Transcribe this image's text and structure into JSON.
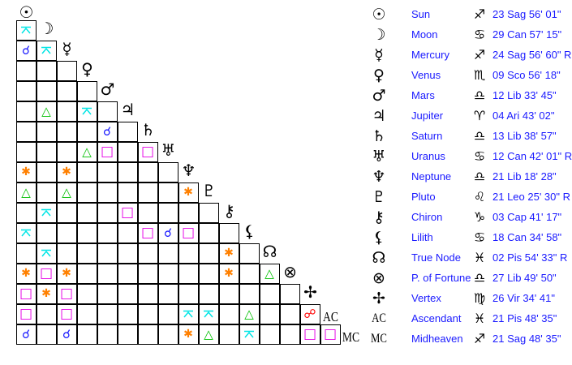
{
  "aspect_colors": {
    "conjunction": "#1a1aff",
    "sextile": "#ff8000",
    "square": "#e600e6",
    "trine": "#00c000",
    "quincunx": "#00e5e5",
    "opposition": "#ff0000"
  },
  "aspect_glyphs": {
    "conjunction": "☌",
    "sextile": "✱",
    "square": "□",
    "trine": "△",
    "quincunx": "quincunx-icon",
    "opposition": "☍"
  },
  "bodies": [
    {
      "glyph": "☉",
      "icon": "sun-icon",
      "name": "Sun",
      "sign": "♐",
      "position": "23 Sag 56' 01\""
    },
    {
      "glyph": "☽",
      "icon": "moon-icon",
      "name": "Moon",
      "sign": "♋",
      "position": "29 Can 57' 15\""
    },
    {
      "glyph": "☿",
      "icon": "mercury-icon",
      "name": "Mercury",
      "sign": "♐",
      "position": "24 Sag 56' 60\" R"
    },
    {
      "glyph": "♀",
      "icon": "venus-icon",
      "name": "Venus",
      "sign": "♏",
      "position": "09 Sco 56' 18\""
    },
    {
      "glyph": "♂",
      "icon": "mars-icon",
      "name": "Mars",
      "sign": "♎",
      "position": "12 Lib 33' 45\""
    },
    {
      "glyph": "♃",
      "icon": "jupiter-icon",
      "name": "Jupiter",
      "sign": "♈",
      "position": "04 Ari 43' 02\""
    },
    {
      "glyph": "♄",
      "icon": "saturn-icon",
      "name": "Saturn",
      "sign": "♎",
      "position": "13 Lib 38' 57\""
    },
    {
      "glyph": "♅",
      "icon": "uranus-icon",
      "name": "Uranus",
      "sign": "♋",
      "position": "12 Can 42' 01\" R"
    },
    {
      "glyph": "♆",
      "icon": "neptune-icon",
      "name": "Neptune",
      "sign": "♎",
      "position": "21 Lib 18' 28\""
    },
    {
      "glyph": "♇",
      "icon": "pluto-icon",
      "name": "Pluto",
      "sign": "♌",
      "position": "21 Leo 25' 30\" R"
    },
    {
      "glyph": "⚷",
      "icon": "chiron-icon",
      "name": "Chiron",
      "sign": "♑",
      "position": "03 Cap 41' 17\""
    },
    {
      "glyph": "⚸",
      "icon": "lilith-icon",
      "name": "Lilith",
      "sign": "♋",
      "position": "18 Can 34' 58\""
    },
    {
      "glyph": "☊",
      "icon": "true-node-icon",
      "name": "True Node",
      "sign": "♓",
      "position": "02 Pis 54' 33\" R"
    },
    {
      "glyph": "⊗",
      "icon": "part-of-fortune-icon",
      "name": "P. of Fortune",
      "sign": "♎",
      "position": "27 Lib 49' 50\""
    },
    {
      "glyph": "✢",
      "icon": "vertex-icon",
      "name": "Vertex",
      "sign": "♍",
      "position": "26 Vir 34' 41\""
    },
    {
      "glyph": "AC",
      "icon": "ascendant-label",
      "name": "Ascendant",
      "sign": "♓",
      "position": "21 Pis 48' 35\""
    },
    {
      "glyph": "MC",
      "icon": "midheaven-label",
      "name": "Midheaven",
      "sign": "♐",
      "position": "21 Sag 48' 35\""
    }
  ],
  "aspects": [
    [],
    [
      [
        "quincunx"
      ]
    ],
    [
      [
        "conjunction"
      ],
      [
        "quincunx"
      ]
    ],
    [],
    [],
    [
      [
        1,
        "trine"
      ],
      [
        3,
        "quincunx"
      ]
    ],
    [
      [
        4,
        "conjunction"
      ]
    ],
    [
      [
        3,
        "trine"
      ],
      [
        4,
        "square"
      ],
      [
        6,
        "square"
      ]
    ],
    [
      [
        0,
        "sextile"
      ],
      [
        2,
        "sextile"
      ]
    ],
    [
      [
        0,
        "trine"
      ],
      [
        2,
        "trine"
      ],
      [
        8,
        "sextile"
      ]
    ],
    [
      [
        1,
        "quincunx"
      ],
      [
        5,
        "square"
      ]
    ],
    [
      [
        0,
        "quincunx"
      ],
      [
        6,
        "square"
      ],
      [
        7,
        "conjunction"
      ],
      [
        8,
        "square"
      ]
    ],
    [
      [
        1,
        "quincunx"
      ],
      [
        10,
        "sextile"
      ]
    ],
    [
      [
        0,
        "sextile"
      ],
      [
        1,
        "square"
      ],
      [
        2,
        "sextile"
      ],
      [
        10,
        "sextile"
      ],
      [
        12,
        "trine"
      ]
    ],
    [
      [
        0,
        "square"
      ],
      [
        1,
        "sextile"
      ],
      [
        2,
        "square"
      ]
    ],
    [
      [
        0,
        "square"
      ],
      [
        2,
        "square"
      ],
      [
        8,
        "quincunx"
      ],
      [
        9,
        "quincunx"
      ],
      [
        11,
        "trine"
      ],
      [
        14,
        "opposition"
      ]
    ],
    [
      [
        0,
        "conjunction"
      ],
      [
        2,
        "conjunction"
      ],
      [
        8,
        "sextile"
      ],
      [
        9,
        "trine"
      ],
      [
        11,
        "quincunx"
      ],
      [
        14,
        "square"
      ],
      [
        15,
        "square"
      ]
    ]
  ]
}
